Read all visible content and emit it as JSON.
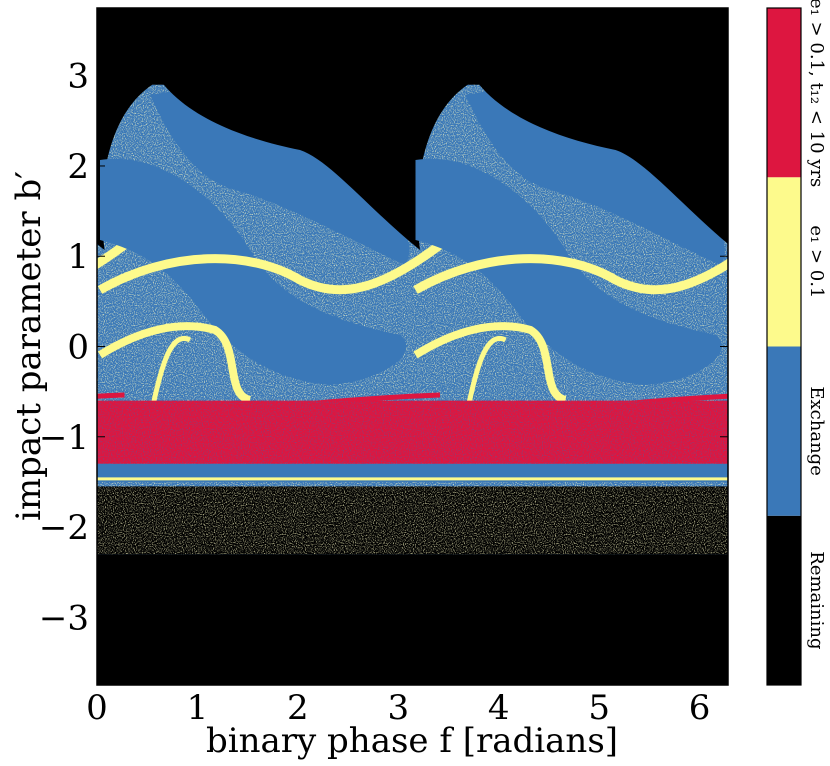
{
  "chart_data": {
    "type": "heatmap",
    "xlabel": "binary phase f [radians]",
    "ylabel": "impact parameter b′",
    "xlim": [
      0,
      6.283
    ],
    "ylim": [
      -3.75,
      3.75
    ],
    "x_ticks": [
      0,
      1,
      2,
      3,
      4,
      5,
      6
    ],
    "y_ticks": [
      3,
      2,
      1,
      0,
      -1,
      -2,
      -3
    ],
    "x_tick_labels": [
      "0",
      "1",
      "2",
      "3",
      "4",
      "5",
      "6"
    ],
    "y_tick_labels": [
      "3",
      "2",
      "1",
      "0",
      "−1",
      "−2",
      "−3"
    ],
    "categories": [
      {
        "key": "remaining",
        "label": "Remaining",
        "color": "#000000"
      },
      {
        "key": "exchange",
        "label": "Exchange",
        "color": "#3a78b8"
      },
      {
        "key": "e1",
        "label": "e₁ > 0.1",
        "color": "#fdfa8c"
      },
      {
        "key": "e1_t12",
        "label": "e₁ > 0.1, t₁₂ < 10 yrs",
        "color": "#dd1640"
      }
    ],
    "periodicity_x": 3.1416,
    "bands": [
      {
        "b_range": [
          2.3,
          3.75
        ],
        "category": "remaining"
      },
      {
        "b_range": [
          -0.6,
          -1.3
        ],
        "category": "e1_t12"
      },
      {
        "b_range": [
          -1.5,
          -2.3
        ],
        "category": "e1"
      },
      {
        "b_range": [
          -2.3,
          -3.75
        ],
        "category": "remaining"
      }
    ]
  }
}
